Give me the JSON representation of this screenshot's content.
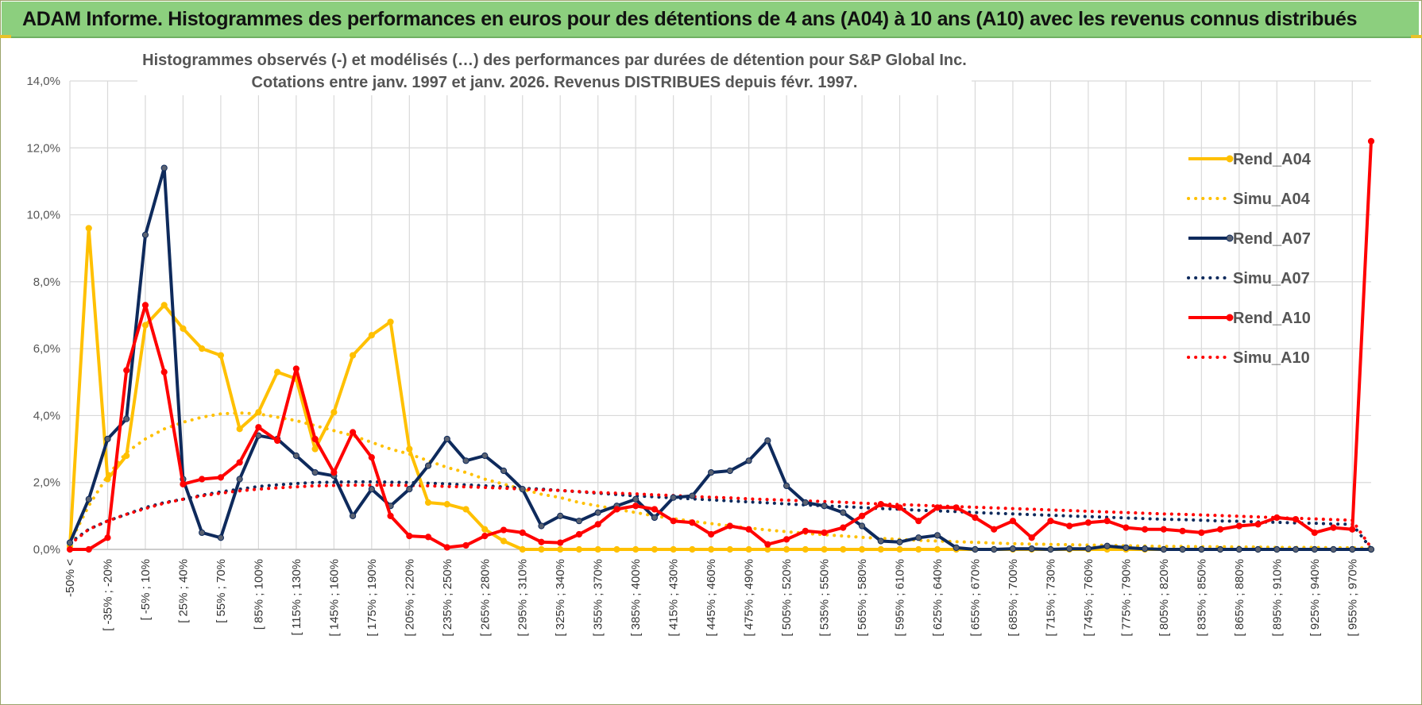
{
  "banner": {
    "title": "ADAM Informe. Histogrammes des performances en euros pour des détentions de 4 ans (A04) à 10 ans (A10) avec les revenus connus distribués"
  },
  "colors": {
    "banner_bg": "#8ccf7e",
    "a04": "#ffc000",
    "a07": "#0e2a5c",
    "a10": "#ff0000",
    "grid": "#d9d9d9"
  },
  "chart_data": {
    "type": "line",
    "title_lines": [
      "Histogrammes observés (-) et modélisés (…) des performances par durées de détention pour S&P Global Inc.",
      "Cotations entre janv. 1997 et janv. 2026. Revenus DISTRIBUES depuis févr. 1997."
    ],
    "ylim": [
      0,
      14
    ],
    "y_ticks": [
      "0,0%",
      "2,0%",
      "4,0%",
      "6,0%",
      "8,0%",
      "10,0%",
      "12,0%",
      "14,0%"
    ],
    "x_tick_labels": [
      "-50% <",
      "[ -35% ; -20%",
      "[ -5% ; 10%",
      "[ 25% ; 40%",
      "[ 55% ; 70%",
      "[ 85% ; 100%",
      "[ 115% ; 130%",
      "[ 145% ; 160%",
      "[ 175% ; 190%",
      "[ 205% ; 220%",
      "[ 235% ; 250%",
      "[ 265% ; 280%",
      "[ 295% ; 310%",
      "[ 325% ; 340%",
      "[ 355% ; 370%",
      "[ 385% ; 400%",
      "[ 415% ; 430%",
      "[ 445% ; 460%",
      "[ 475% ; 490%",
      "[ 505% ; 520%",
      "[ 535% ; 550%",
      "[ 565% ; 580%",
      "[ 595% ; 610%",
      "[ 625% ; 640%",
      "[ 655% ; 670%",
      "[ 685% ; 700%",
      "[ 715% ; 730%",
      "[ 745% ; 760%",
      "[ 775% ; 790%",
      "[ 805% ; 820%",
      "[ 835% ; 850%",
      "[ 865% ; 880%",
      "[ 895% ; 910%",
      "[ 925% ; 940%",
      "[ 955% ; 970%"
    ],
    "n_points": 70,
    "series": [
      {
        "name": "Rend_A04",
        "style": "solid",
        "color": "#ffc000",
        "values": [
          0.1,
          9.6,
          2.1,
          2.8,
          6.7,
          7.3,
          6.6,
          6.0,
          5.8,
          3.6,
          4.1,
          5.3,
          5.1,
          3.0,
          4.1,
          5.8,
          6.4,
          6.8,
          3.0,
          1.4,
          1.35,
          1.2,
          0.6,
          0.25,
          0.0,
          0.0,
          0.0,
          0.0,
          0.0,
          0.0,
          0.0,
          0.0,
          0.0,
          0.0,
          0.0,
          0.0,
          0.0,
          0.0,
          0.0,
          0.0,
          0.0,
          0.0,
          0.0,
          0.0,
          0.0,
          0.0,
          0.0,
          0.0,
          0.0,
          0.0,
          0.0,
          0.0,
          0.0,
          0.0,
          0.0,
          0.0,
          0.0,
          0.0,
          0.0,
          0.0,
          0.0,
          0.0,
          0.0,
          0.0,
          0.0,
          0.0,
          0.0,
          0.0,
          0.0,
          0.0
        ]
      },
      {
        "name": "Simu_A04",
        "style": "dotted",
        "color": "#ffc000",
        "values": [
          0.2,
          1.3,
          2.2,
          2.9,
          3.3,
          3.6,
          3.8,
          3.95,
          4.05,
          4.08,
          4.05,
          3.95,
          3.85,
          3.7,
          3.55,
          3.4,
          3.2,
          3.0,
          2.85,
          2.65,
          2.45,
          2.3,
          2.1,
          1.95,
          1.8,
          1.65,
          1.55,
          1.4,
          1.3,
          1.2,
          1.1,
          1.0,
          0.92,
          0.84,
          0.77,
          0.7,
          0.64,
          0.58,
          0.53,
          0.48,
          0.44,
          0.4,
          0.36,
          0.33,
          0.3,
          0.27,
          0.25,
          0.23,
          0.21,
          0.19,
          0.17,
          0.16,
          0.15,
          0.14,
          0.13,
          0.12,
          0.11,
          0.1,
          0.09,
          0.09,
          0.08,
          0.08,
          0.07,
          0.07,
          0.06,
          0.06,
          0.06,
          0.05,
          0.05,
          0.04
        ]
      },
      {
        "name": "Rend_A07",
        "style": "solid",
        "color": "#0e2a5c",
        "values": [
          0.2,
          1.5,
          3.3,
          3.9,
          9.4,
          11.4,
          2.1,
          0.5,
          0.35,
          2.1,
          3.4,
          3.3,
          2.8,
          2.3,
          2.2,
          1.0,
          1.8,
          1.3,
          1.8,
          2.5,
          3.3,
          2.65,
          2.8,
          2.35,
          1.8,
          0.7,
          1.0,
          0.85,
          1.1,
          1.3,
          1.5,
          0.95,
          1.55,
          1.6,
          2.3,
          2.35,
          2.65,
          3.25,
          1.9,
          1.4,
          1.3,
          1.1,
          0.7,
          0.25,
          0.22,
          0.35,
          0.42,
          0.05,
          0.0,
          0.0,
          0.02,
          0.02,
          0.0,
          0.02,
          0.02,
          0.1,
          0.05,
          0.02,
          0.0,
          0.0,
          0.0,
          0.0,
          0.0,
          0.0,
          0.0,
          0.0,
          0.0,
          0.0,
          0.0,
          0.0
        ]
      },
      {
        "name": "Simu_A07",
        "style": "dotted",
        "color": "#0e2a5c",
        "values": [
          0.2,
          0.6,
          0.85,
          1.05,
          1.25,
          1.4,
          1.5,
          1.62,
          1.72,
          1.8,
          1.88,
          1.93,
          1.97,
          2.0,
          2.01,
          2.02,
          2.02,
          2.01,
          2.0,
          1.98,
          1.96,
          1.93,
          1.9,
          1.87,
          1.83,
          1.8,
          1.76,
          1.72,
          1.68,
          1.64,
          1.6,
          1.57,
          1.54,
          1.51,
          1.48,
          1.45,
          1.42,
          1.39,
          1.36,
          1.33,
          1.3,
          1.28,
          1.25,
          1.22,
          1.2,
          1.17,
          1.15,
          1.13,
          1.1,
          1.08,
          1.06,
          1.04,
          1.02,
          1.0,
          0.98,
          0.96,
          0.94,
          0.92,
          0.9,
          0.89,
          0.87,
          0.85,
          0.84,
          0.82,
          0.81,
          0.79,
          0.78,
          0.76,
          0.75,
          0.02
        ]
      },
      {
        "name": "Rend_A10",
        "style": "solid",
        "color": "#ff0000",
        "values": [
          0.0,
          0.0,
          0.35,
          5.35,
          7.3,
          5.3,
          1.95,
          2.1,
          2.15,
          2.6,
          3.65,
          3.25,
          5.4,
          3.3,
          2.3,
          3.5,
          2.75,
          1.0,
          0.4,
          0.37,
          0.06,
          0.12,
          0.4,
          0.58,
          0.5,
          0.22,
          0.2,
          0.45,
          0.75,
          1.2,
          1.3,
          1.2,
          0.85,
          0.8,
          0.45,
          0.7,
          0.6,
          0.15,
          0.3,
          0.55,
          0.5,
          0.65,
          1.0,
          1.35,
          1.25,
          0.85,
          1.25,
          1.25,
          0.95,
          0.6,
          0.85,
          0.35,
          0.85,
          0.7,
          0.8,
          0.85,
          0.65,
          0.6,
          0.6,
          0.55,
          0.5,
          0.6,
          0.7,
          0.75,
          0.95,
          0.9,
          0.5,
          0.65,
          0.6,
          12.2
        ]
      },
      {
        "name": "Simu_A10",
        "style": "dotted",
        "color": "#ff0000",
        "values": [
          0.15,
          0.6,
          0.85,
          1.05,
          1.22,
          1.38,
          1.5,
          1.6,
          1.68,
          1.75,
          1.8,
          1.84,
          1.87,
          1.9,
          1.91,
          1.92,
          1.92,
          1.92,
          1.91,
          1.9,
          1.88,
          1.87,
          1.85,
          1.83,
          1.8,
          1.78,
          1.76,
          1.73,
          1.7,
          1.68,
          1.66,
          1.63,
          1.61,
          1.58,
          1.56,
          1.54,
          1.51,
          1.49,
          1.47,
          1.45,
          1.43,
          1.41,
          1.38,
          1.36,
          1.34,
          1.32,
          1.3,
          1.28,
          1.26,
          1.24,
          1.22,
          1.2,
          1.18,
          1.16,
          1.14,
          1.12,
          1.1,
          1.08,
          1.06,
          1.05,
          1.03,
          1.01,
          0.99,
          0.97,
          0.95,
          0.93,
          0.91,
          0.89,
          0.87,
          0.05
        ]
      }
    ],
    "legend": [
      "Rend_A04",
      "Simu_A04",
      "Rend_A07",
      "Simu_A07",
      "Rend_A10",
      "Simu_A10"
    ],
    "legend_position": "right",
    "grid": true
  }
}
